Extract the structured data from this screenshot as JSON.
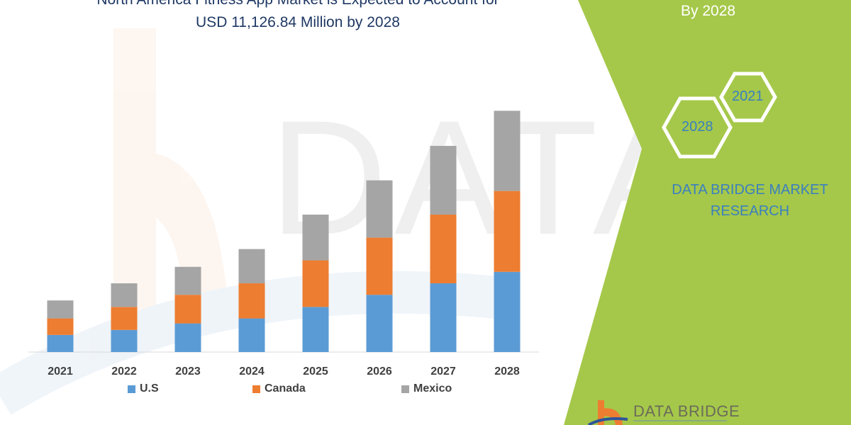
{
  "header": {
    "title_line1": "North America Fitness App Market is Expected to Account for",
    "title_line2": "USD 11,126.84 Million by 2028"
  },
  "side_panel": {
    "top_text": "By 2028",
    "hex_years": [
      "2028",
      "2021"
    ],
    "brand": "DATA BRIDGE MARKET RESEARCH",
    "logo_text": "DATA BRIDGE",
    "panel_color": "#a5c84a"
  },
  "chart_data": {
    "type": "bar",
    "stacked": true,
    "categories": [
      "2021",
      "2022",
      "2023",
      "2024",
      "2025",
      "2026",
      "2027",
      "2028"
    ],
    "series": [
      {
        "name": "U.S",
        "color": "#5b9bd5",
        "values": [
          790,
          1020,
          1320,
          1550,
          2080,
          2640,
          3170,
          3700
        ]
      },
      {
        "name": "Canada",
        "color": "#ed7d31",
        "values": [
          760,
          1060,
          1320,
          1620,
          2150,
          2640,
          3170,
          3730
        ]
      },
      {
        "name": "Mexico",
        "color": "#a5a5a5",
        "values": [
          830,
          1090,
          1290,
          1580,
          2110,
          2640,
          3170,
          3700
        ]
      }
    ],
    "legend_position": "bottom",
    "grid": false,
    "y_axis_shown": false,
    "ylim": [
      0,
      11600
    ]
  }
}
